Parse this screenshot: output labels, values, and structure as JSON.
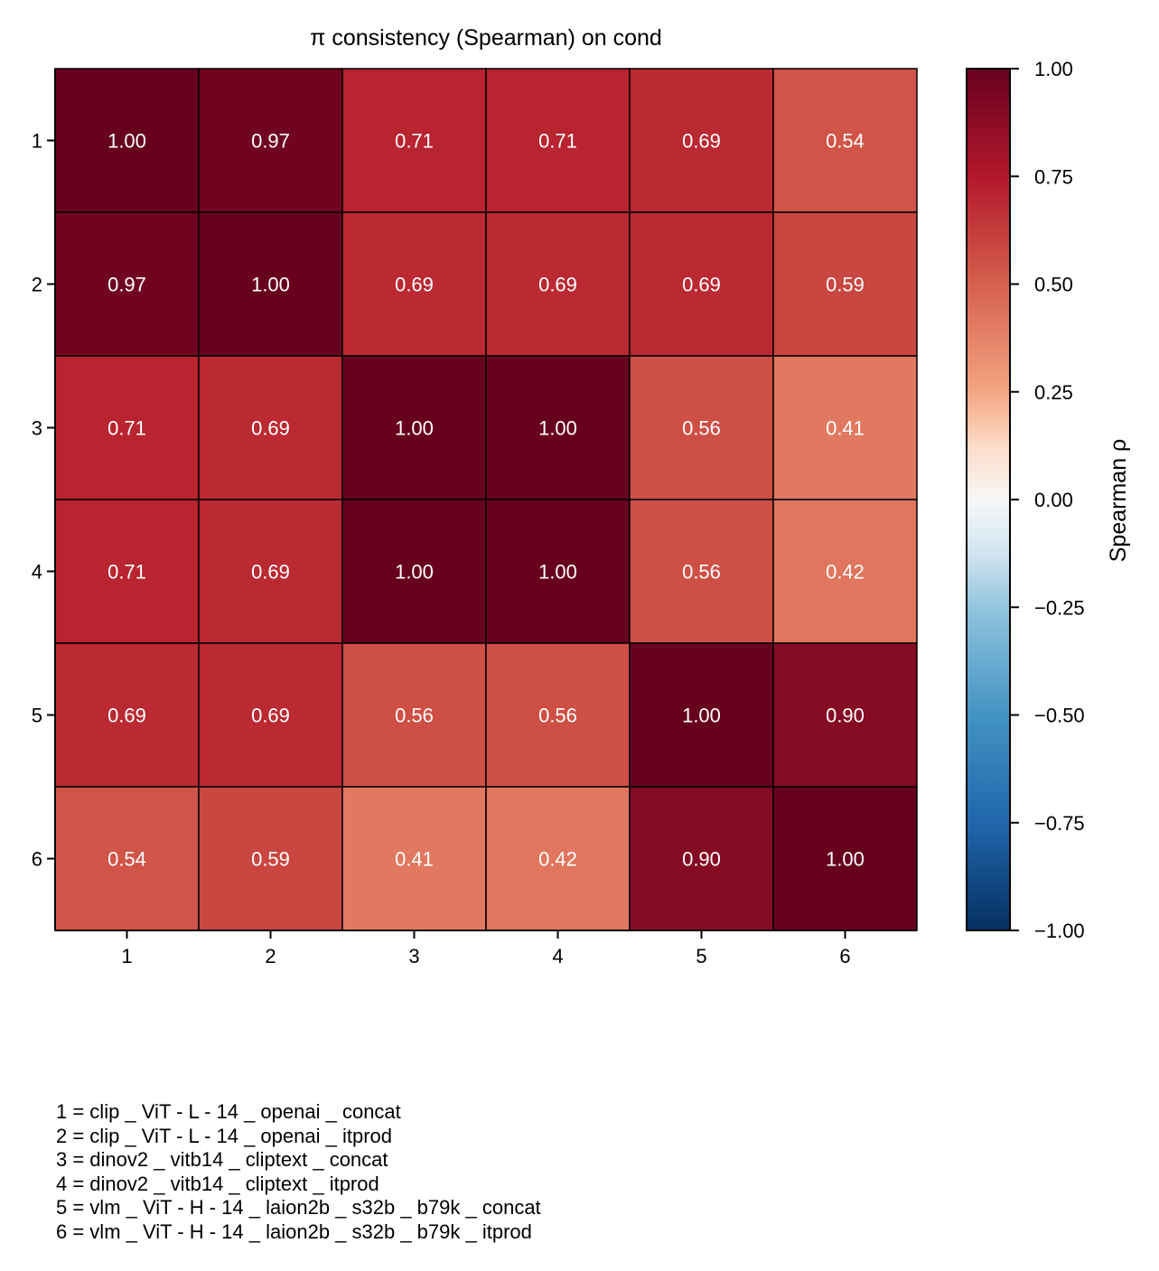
{
  "chart_data": {
    "type": "heatmap",
    "title": "π consistency (Spearman) on cond",
    "x_tick_labels": [
      "1",
      "2",
      "3",
      "4",
      "5",
      "6"
    ],
    "y_tick_labels": [
      "1",
      "2",
      "3",
      "4",
      "5",
      "6"
    ],
    "matrix": [
      [
        1.0,
        0.97,
        0.71,
        0.71,
        0.69,
        0.54
      ],
      [
        0.97,
        1.0,
        0.69,
        0.69,
        0.69,
        0.59
      ],
      [
        0.71,
        0.69,
        1.0,
        1.0,
        0.56,
        0.41
      ],
      [
        0.71,
        0.69,
        1.0,
        1.0,
        0.56,
        0.42
      ],
      [
        0.69,
        0.69,
        0.56,
        0.56,
        1.0,
        0.9
      ],
      [
        0.54,
        0.59,
        0.41,
        0.42,
        0.9,
        1.0
      ]
    ],
    "cell_labels": [
      [
        "1.00",
        "0.97",
        "0.71",
        "0.71",
        "0.69",
        "0.54"
      ],
      [
        "0.97",
        "1.00",
        "0.69",
        "0.69",
        "0.69",
        "0.59"
      ],
      [
        "0.71",
        "0.69",
        "1.00",
        "1.00",
        "0.56",
        "0.41"
      ],
      [
        "0.71",
        "0.69",
        "1.00",
        "1.00",
        "0.56",
        "0.42"
      ],
      [
        "0.69",
        "0.69",
        "0.56",
        "0.56",
        "1.00",
        "0.90"
      ],
      [
        "0.54",
        "0.59",
        "0.41",
        "0.42",
        "0.90",
        "1.00"
      ]
    ],
    "colormap": "RdBu_r",
    "vmin": -1.0,
    "vmax": 1.0,
    "colorbar": {
      "label": "Spearman ρ",
      "ticks": [
        1.0,
        0.75,
        0.5,
        0.25,
        0.0,
        -0.25,
        -0.5,
        -0.75,
        -1.0
      ],
      "tick_labels": [
        "1.00",
        "0.75",
        "0.50",
        "0.25",
        "0.00",
        "−0.25",
        "−0.50",
        "−0.75",
        "−1.00"
      ]
    },
    "legend_entries": [
      "1 = clip _ ViT - L - 14 _ openai _ concat",
      "2 = clip _ ViT - L - 14 _ openai _ itprod",
      "3 = dinov2 _ vitb14 _ cliptext _ concat",
      "4 = dinov2 _ vitb14 _ cliptext _ itprod",
      "5 = vlm _ ViT - H - 14 _ laion2b _ s32b _ b79k _ concat",
      "6 = vlm _ ViT - H - 14 _ laion2b _ s32b _ b79k _ itprod"
    ]
  }
}
